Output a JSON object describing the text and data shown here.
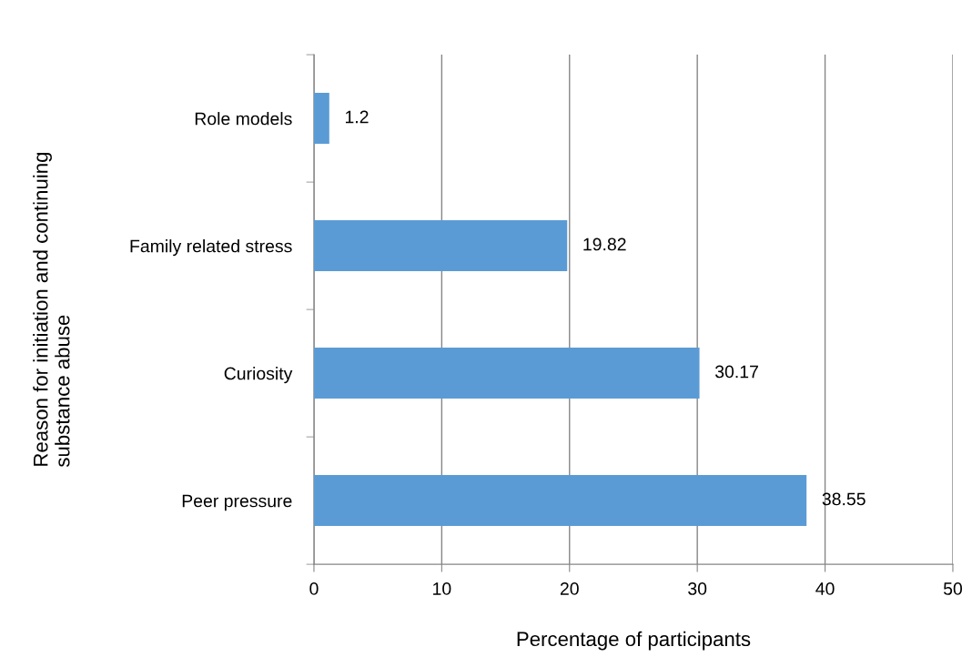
{
  "chart_data": {
    "type": "bar",
    "orientation": "horizontal",
    "categories": [
      "Role models",
      "Family related stress",
      "Curiosity",
      "Peer pressure"
    ],
    "values": [
      1.2,
      19.82,
      30.17,
      38.55
    ],
    "color": "#5b9bd5",
    "xlabel": "Percentage of participants",
    "ylabel": "Reason for initiation and continuing\nsubstance abuse",
    "xlim": [
      0,
      50
    ],
    "xticks": [
      0,
      10,
      20,
      30,
      40,
      50
    ],
    "grid": "x",
    "data_labels": true
  }
}
